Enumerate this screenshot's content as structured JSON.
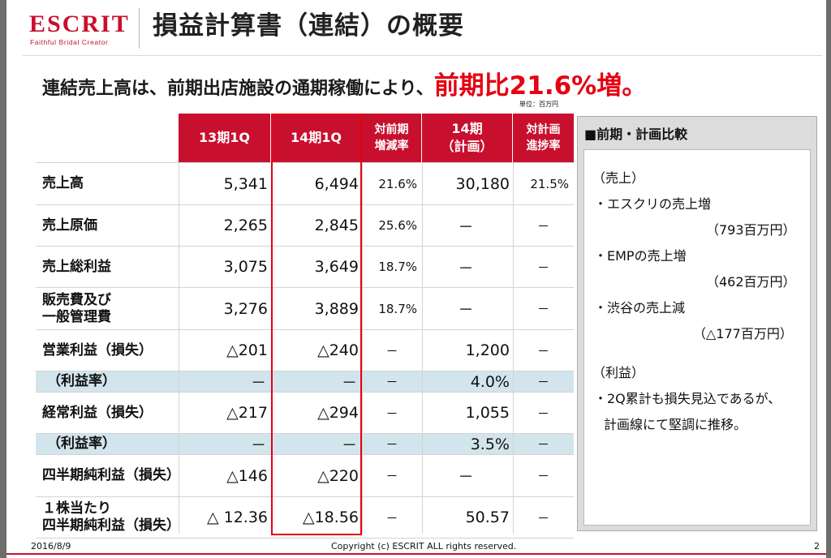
{
  "logo": {
    "wordmark": "ESCRIT",
    "tagline": "Faithful Bridal Creator"
  },
  "title": "損益計算書（連結）の概要",
  "headline": {
    "text": "連結売上高は、前期出店施設の通期稼働により、",
    "highlight": "前期比21.6%増。"
  },
  "unit_note": "単位：百万円",
  "table": {
    "headers": [
      "13期1Q",
      "14期1Q",
      "対前期\n増減率",
      "14期\n（計画）",
      "対計画\n進捗率"
    ],
    "rows": [
      {
        "label": "売上高",
        "q13": "5,341",
        "q14": "6,494",
        "yoy": "21.6%",
        "plan": "30,180",
        "progress": "21.5%"
      },
      {
        "label": "売上原価",
        "q13": "2,265",
        "q14": "2,845",
        "yoy": "25.6%",
        "plan": "－",
        "progress": "－"
      },
      {
        "label": "売上総利益",
        "q13": "3,075",
        "q14": "3,649",
        "yoy": "18.7%",
        "plan": "－",
        "progress": "－"
      },
      {
        "label": "販売費及び\n一般管理費",
        "q13": "3,276",
        "q14": "3,889",
        "yoy": "18.7%",
        "plan": "－",
        "progress": "－"
      },
      {
        "label": "営業利益（損失）",
        "q13": "△201",
        "q14": "△240",
        "yoy": "－",
        "plan": "1,200",
        "progress": "－"
      },
      {
        "label": "（利益率）",
        "q13": "－",
        "q14": "－",
        "yoy": "－",
        "plan": "4.0%",
        "progress": "－"
      },
      {
        "label": "経常利益（損失）",
        "q13": "△217",
        "q14": "△294",
        "yoy": "－",
        "plan": "1,055",
        "progress": "－"
      },
      {
        "label": "（利益率）",
        "q13": "－",
        "q14": "－",
        "yoy": "－",
        "plan": "3.5%",
        "progress": "－"
      },
      {
        "label": "四半期純利益（損失）",
        "q13": "△146",
        "q14": "△220",
        "yoy": "－",
        "plan": "－",
        "progress": "－"
      },
      {
        "label": "１株当たり\n四半期純利益（損失）",
        "q13": "△ 12.36",
        "q14": "△18.56",
        "yoy": "－",
        "plan": "50.57",
        "progress": "－"
      }
    ]
  },
  "panel": {
    "title": "■前期・計画比較",
    "lines": [
      "（売上）",
      "・エスクリの売上増",
      "（793百万円）",
      "・EMPの売上増",
      "（462百万円）",
      "・渋谷の売上減",
      "（△177百万円）",
      "（利益）",
      "・2Q累計も損失見込であるが、",
      "計画線にて堅調に推移。"
    ]
  },
  "footer": {
    "date": "2016/8/9",
    "copyright": "Copyright (c) ESCRIT ALL rights reserved.",
    "page": "2"
  },
  "colors": {
    "brand_red": "#c8102e",
    "highlight_red": "#e60012",
    "ratio_row": "#d2e5ec",
    "panel_gray": "#dcdcdc"
  }
}
